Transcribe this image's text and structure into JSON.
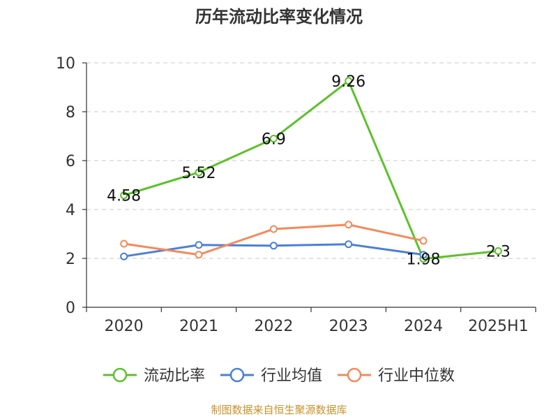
{
  "chart_data": {
    "type": "line",
    "title": "历年流动比率变化情况",
    "xlabel": "",
    "ylabel": "",
    "categories": [
      "2020",
      "2021",
      "2022",
      "2023",
      "2024",
      "2025H1"
    ],
    "ylim": [
      0,
      10
    ],
    "yticks": [
      0,
      2,
      4,
      6,
      8,
      10
    ],
    "grid": "horizontal-dashed",
    "legend_position": "bottom",
    "series": [
      {
        "name": "流动比率",
        "color": "#5cc12a",
        "values": [
          4.58,
          5.52,
          6.9,
          9.26,
          1.98,
          2.3
        ],
        "labels": [
          "4.58",
          "5.52",
          "6.9",
          "9.26",
          "1.98",
          "2.3"
        ]
      },
      {
        "name": "行业均值",
        "color": "#4a7fdb",
        "values": [
          2.08,
          2.55,
          2.52,
          2.58,
          2.15,
          null
        ]
      },
      {
        "name": "行业中位数",
        "color": "#f5895a",
        "values": [
          2.6,
          2.15,
          3.2,
          3.38,
          2.72,
          null
        ]
      }
    ]
  },
  "source": "制图数据来自恒生聚源数据库"
}
